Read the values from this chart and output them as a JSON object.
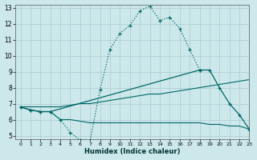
{
  "xlabel": "Humidex (Indice chaleur)",
  "bg_color": "#cce8ea",
  "grid_color": "#b0d0d4",
  "line_color": "#006666",
  "xlim": [
    -0.5,
    23
  ],
  "ylim": [
    4.8,
    13.2
  ],
  "xtick_labels": [
    "0",
    "1",
    "2",
    "3",
    "4",
    "5",
    "6",
    "7",
    "8",
    "9",
    "10",
    "11",
    "12",
    "13",
    "14",
    "15",
    "16",
    "17",
    "18",
    "19",
    "20",
    "21",
    "22",
    "23"
  ],
  "xtick_pos": [
    0,
    1,
    2,
    3,
    4,
    5,
    6,
    7,
    8,
    9,
    10,
    11,
    12,
    13,
    14,
    15,
    16,
    17,
    18,
    19,
    20,
    21,
    22,
    23
  ],
  "ytick_pos": [
    5,
    6,
    7,
    8,
    9,
    10,
    11,
    12,
    13
  ],
  "ytick_labels": [
    "5",
    "6",
    "7",
    "8",
    "9",
    "10",
    "11",
    "12",
    "13"
  ],
  "line1_x": [
    0,
    1,
    2,
    3,
    4,
    5,
    6,
    7,
    8,
    9,
    10,
    11,
    12,
    13,
    14,
    15,
    16,
    17,
    18
  ],
  "line1_y": [
    6.8,
    6.6,
    6.5,
    6.5,
    6.0,
    5.2,
    4.7,
    4.7,
    7.9,
    10.4,
    11.4,
    11.9,
    12.8,
    13.1,
    12.2,
    12.4,
    11.7,
    10.4,
    9.1
  ],
  "line2_x": [
    0,
    1,
    2,
    3,
    18,
    19,
    20,
    21,
    22,
    23
  ],
  "line2_y": [
    6.8,
    6.6,
    6.5,
    6.5,
    9.1,
    9.1,
    8.0,
    7.0,
    6.3,
    5.4
  ],
  "line3_x": [
    0,
    1,
    2,
    3,
    4,
    5,
    6,
    7,
    8,
    9,
    10,
    11,
    12,
    13,
    14,
    15,
    16,
    17,
    18,
    19,
    20,
    21,
    22,
    23
  ],
  "line3_y": [
    6.8,
    6.8,
    6.8,
    6.8,
    6.8,
    6.9,
    7.0,
    7.0,
    7.1,
    7.2,
    7.3,
    7.4,
    7.5,
    7.6,
    7.6,
    7.7,
    7.8,
    7.9,
    8.0,
    8.1,
    8.2,
    8.3,
    8.4,
    8.5
  ],
  "line4_x": [
    0,
    1,
    2,
    3,
    4,
    5,
    6,
    7,
    8,
    9,
    10,
    11,
    12,
    13,
    14,
    15,
    16,
    17,
    18,
    19,
    20,
    21,
    22,
    23
  ],
  "line4_y": [
    6.8,
    6.6,
    6.5,
    6.5,
    6.0,
    6.0,
    5.9,
    5.8,
    5.8,
    5.8,
    5.8,
    5.8,
    5.8,
    5.8,
    5.8,
    5.8,
    5.8,
    5.8,
    5.8,
    5.7,
    5.7,
    5.6,
    5.6,
    5.4
  ]
}
